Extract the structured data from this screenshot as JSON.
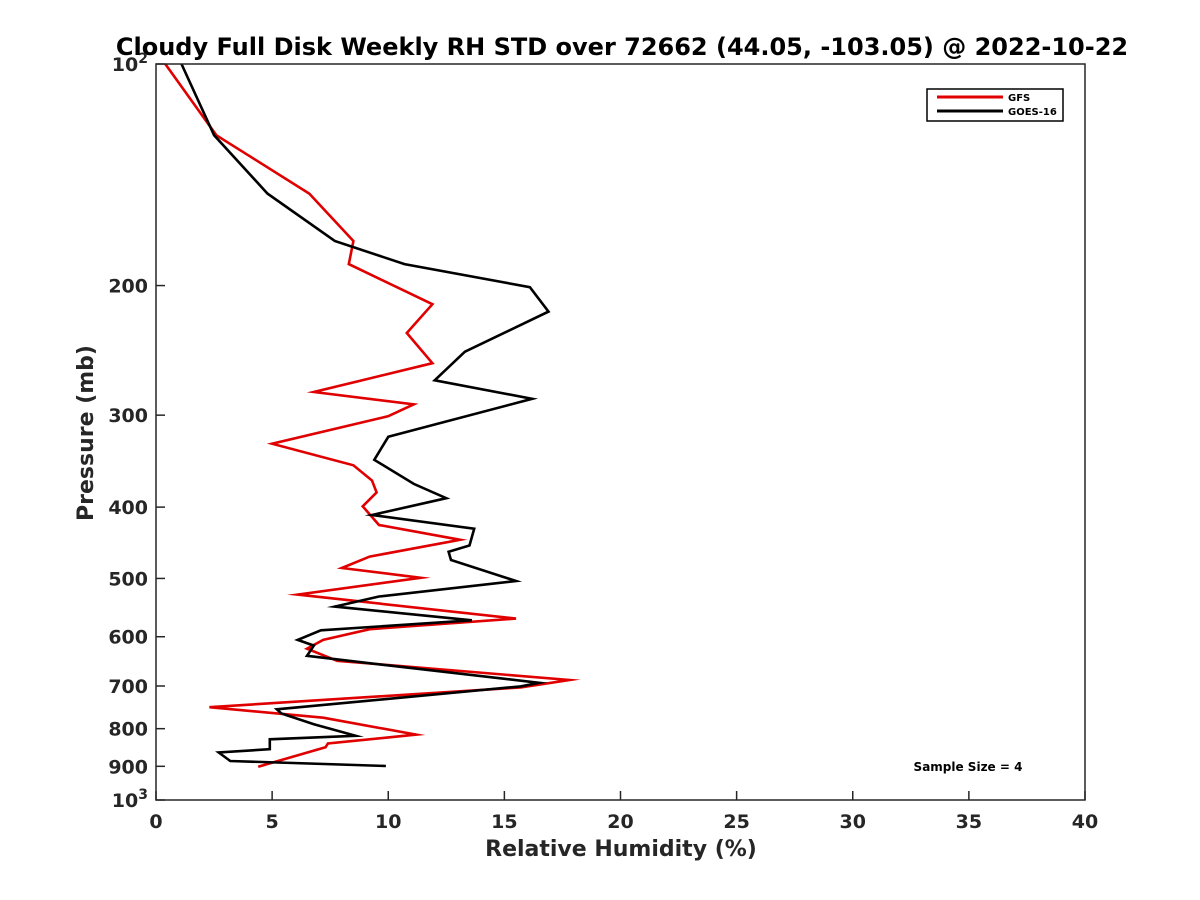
{
  "chart_data": {
    "type": "line",
    "title": "Cloudy Full Disk Weekly RH STD over 72662 (44.05, -103.05) @ 2022-10-22",
    "xlabel": "Relative Humidity (%)",
    "ylabel": "Pressure (mb)",
    "xlim": [
      0,
      40
    ],
    "ylim": [
      100,
      1000
    ],
    "yscale": "log",
    "y_reversed": true,
    "x_ticks": [
      "0",
      "5",
      "10",
      "15",
      "20",
      "25",
      "30",
      "35",
      "40"
    ],
    "y_ticks": [
      {
        "value": 100,
        "label": "10",
        "sup": "2"
      },
      {
        "value": 200,
        "label": "200",
        "sup": ""
      },
      {
        "value": 300,
        "label": "300",
        "sup": ""
      },
      {
        "value": 400,
        "label": "400",
        "sup": ""
      },
      {
        "value": 500,
        "label": "500",
        "sup": ""
      },
      {
        "value": 600,
        "label": "600",
        "sup": ""
      },
      {
        "value": 700,
        "label": "700",
        "sup": ""
      },
      {
        "value": 800,
        "label": "800",
        "sup": ""
      },
      {
        "value": 900,
        "label": "900",
        "sup": ""
      },
      {
        "value": 1000,
        "label": "10",
        "sup": "3"
      }
    ],
    "grid": false,
    "legend_position": "top-right",
    "series": [
      {
        "name": "GFS",
        "color": "#e00000",
        "points": [
          [
            0.4,
            100
          ],
          [
            2.6,
            125
          ],
          [
            6.6,
            150
          ],
          [
            8.5,
            174
          ],
          [
            8.3,
            187
          ],
          [
            11.9,
            212
          ],
          [
            10.8,
            232
          ],
          [
            11.9,
            255
          ],
          [
            6.8,
            279
          ],
          [
            11.1,
            290
          ],
          [
            10.0,
            301
          ],
          [
            5.0,
            328
          ],
          [
            8.5,
            351
          ],
          [
            9.3,
            368
          ],
          [
            9.5,
            382
          ],
          [
            8.9,
            399
          ],
          [
            9.6,
            423
          ],
          [
            13.1,
            443
          ],
          [
            9.2,
            467
          ],
          [
            8.0,
            484
          ],
          [
            11.4,
            499
          ],
          [
            6.1,
            526
          ],
          [
            15.5,
            567
          ],
          [
            9.2,
            586
          ],
          [
            7.2,
            606
          ],
          [
            6.5,
            623
          ],
          [
            7.8,
            647
          ],
          [
            17.8,
            687
          ],
          [
            15.7,
            703
          ],
          [
            2.3,
            748
          ],
          [
            7.2,
            773
          ],
          [
            11.2,
            815
          ],
          [
            7.4,
            838
          ],
          [
            7.3,
            848
          ],
          [
            4.4,
            901
          ]
        ]
      },
      {
        "name": "GOES-16",
        "color": "#000000",
        "points": [
          [
            1.1,
            100
          ],
          [
            2.5,
            125
          ],
          [
            4.8,
            150
          ],
          [
            7.7,
            174
          ],
          [
            10.7,
            187
          ],
          [
            16.1,
            201
          ],
          [
            16.9,
            217
          ],
          [
            13.3,
            246
          ],
          [
            12.0,
            269
          ],
          [
            16.2,
            285
          ],
          [
            10.0,
            321
          ],
          [
            9.4,
            345
          ],
          [
            11.1,
            372
          ],
          [
            12.5,
            389
          ],
          [
            9.3,
            410
          ],
          [
            13.7,
            428
          ],
          [
            13.5,
            451
          ],
          [
            12.6,
            460
          ],
          [
            12.7,
            472
          ],
          [
            15.5,
            504
          ],
          [
            9.6,
            529
          ],
          [
            7.7,
            546
          ],
          [
            13.6,
            570
          ],
          [
            7.1,
            588
          ],
          [
            6.1,
            606
          ],
          [
            6.8,
            617
          ],
          [
            6.5,
            637
          ],
          [
            10.3,
            658
          ],
          [
            16.5,
            693
          ],
          [
            15.7,
            701
          ],
          [
            5.2,
            753
          ],
          [
            5.4,
            763
          ],
          [
            6.8,
            789
          ],
          [
            8.6,
            818
          ],
          [
            4.9,
            827
          ],
          [
            4.9,
            853
          ],
          [
            2.7,
            862
          ],
          [
            3.2,
            885
          ],
          [
            9.9,
            899
          ]
        ]
      }
    ],
    "annotations": [
      "Sample Size = 4"
    ]
  }
}
